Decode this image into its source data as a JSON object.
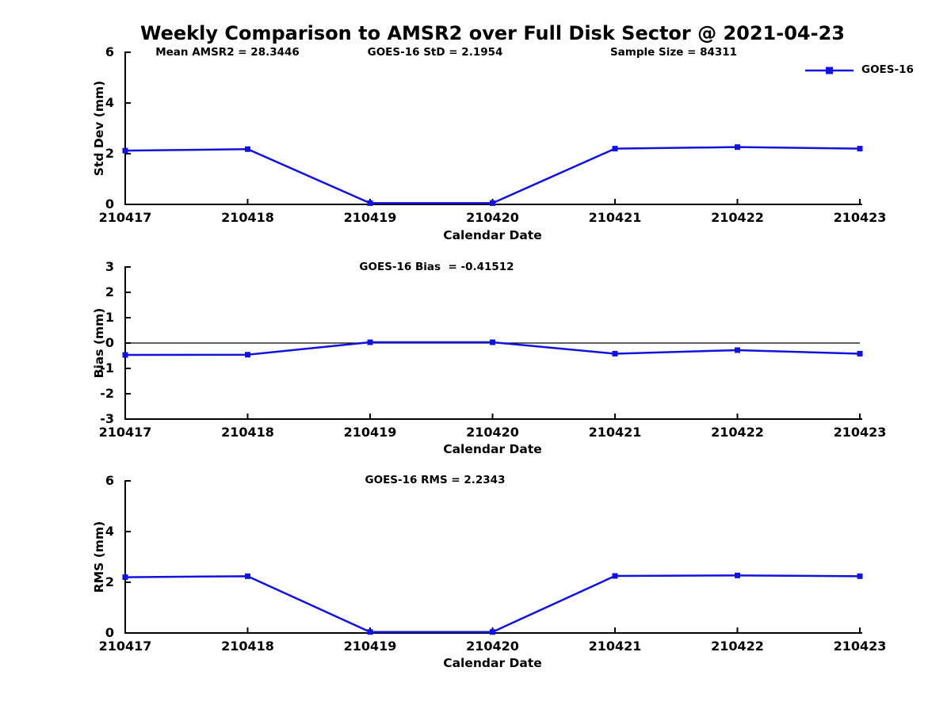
{
  "title": "Weekly Comparison to AMSR2 over Full Disk Sector @ 2021-04-23",
  "legend": {
    "label": "GOES-16",
    "position": "top-right"
  },
  "colors": {
    "line": "#1212dd",
    "axis": "#000000",
    "text": "#000000",
    "background": "#ffffff"
  },
  "chart_data": [
    {
      "type": "line",
      "name": "std-dev-subplot",
      "title": "",
      "ylabel": "Std Dev (mm)",
      "xlabel": "Calendar Date",
      "ylim": [
        0,
        6
      ],
      "yticks": [
        0,
        2,
        4,
        6
      ],
      "grid": false,
      "zero_line": false,
      "categories": [
        "210417",
        "210418",
        "210419",
        "210420",
        "210421",
        "210422",
        "210423"
      ],
      "series": [
        {
          "name": "GOES-16",
          "values": [
            2.12,
            2.18,
            0.05,
            0.05,
            2.2,
            2.26,
            2.2
          ]
        }
      ],
      "annotations": [
        "Mean AMSR2 = 28.3446",
        "GOES-16 StD = 2.1954",
        "Sample Size = 84311"
      ]
    },
    {
      "type": "line",
      "name": "bias-subplot",
      "title": "",
      "ylabel": "Bias (mm)",
      "xlabel": "Calendar Date",
      "ylim": [
        -3,
        3
      ],
      "yticks": [
        -3,
        -2,
        -1,
        0,
        1,
        2,
        3
      ],
      "grid": false,
      "zero_line": true,
      "categories": [
        "210417",
        "210418",
        "210419",
        "210420",
        "210421",
        "210422",
        "210423"
      ],
      "series": [
        {
          "name": "GOES-16",
          "values": [
            -0.47,
            -0.46,
            0.03,
            0.03,
            -0.42,
            -0.28,
            -0.42
          ]
        }
      ],
      "annotations": [
        "GOES-16 Bias  = -0.41512"
      ]
    },
    {
      "type": "line",
      "name": "rms-subplot",
      "title": "",
      "ylabel": "RMS (mm)",
      "xlabel": "Calendar Date",
      "ylim": [
        0,
        6
      ],
      "yticks": [
        0,
        2,
        4,
        6
      ],
      "grid": false,
      "zero_line": false,
      "categories": [
        "210417",
        "210418",
        "210419",
        "210420",
        "210421",
        "210422",
        "210423"
      ],
      "series": [
        {
          "name": "GOES-16",
          "values": [
            2.2,
            2.24,
            0.04,
            0.04,
            2.25,
            2.27,
            2.24
          ]
        }
      ],
      "annotations": [
        "GOES-16 RMS = 2.2343"
      ]
    }
  ]
}
